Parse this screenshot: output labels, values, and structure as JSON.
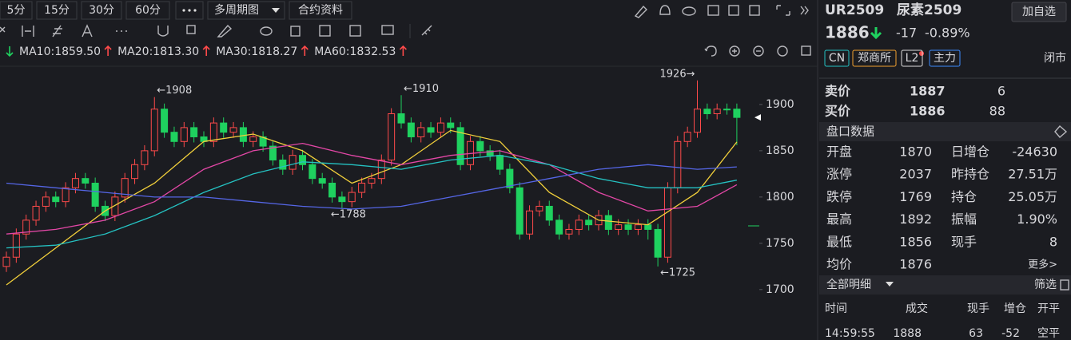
{
  "toolbar": {
    "periods": [
      "5分",
      "15分",
      "30分",
      "60分"
    ],
    "multi_period": "多周期图",
    "contract_info": "合约资料"
  },
  "chart_data": {
    "type": "candlestick",
    "open": [
      1725,
      1735,
      1760,
      1775,
      1790,
      1800,
      1795,
      1810,
      1820,
      1815,
      1790,
      1780,
      1800,
      1820,
      1835,
      1850,
      1895,
      1870,
      1860,
      1875,
      1865,
      1860,
      1880,
      1870,
      1875,
      1860,
      1865,
      1855,
      1840,
      1830,
      1845,
      1835,
      1820,
      1815,
      1800,
      1795,
      1805,
      1815,
      1820,
      1840,
      1890,
      1880,
      1865,
      1875,
      1870,
      1880,
      1875,
      1835,
      1860,
      1850,
      1845,
      1830,
      1810,
      1760,
      1785,
      1790,
      1775,
      1760,
      1765,
      1775,
      1770,
      1780,
      1765,
      1770,
      1765,
      1770,
      1765,
      1735,
      1810,
      1860,
      1870,
      1895,
      1890,
      1895,
      1895
    ],
    "high": [
      1741,
      1766,
      1781,
      1796,
      1806,
      1806,
      1816,
      1826,
      1826,
      1821,
      1796,
      1806,
      1826,
      1841,
      1856,
      1908,
      1901,
      1876,
      1881,
      1881,
      1871,
      1886,
      1886,
      1881,
      1881,
      1871,
      1871,
      1861,
      1846,
      1851,
      1851,
      1841,
      1826,
      1821,
      1806,
      1811,
      1821,
      1826,
      1846,
      1896,
      1910,
      1886,
      1881,
      1881,
      1886,
      1886,
      1881,
      1866,
      1866,
      1856,
      1851,
      1836,
      1816,
      1791,
      1796,
      1796,
      1781,
      1771,
      1781,
      1781,
      1786,
      1786,
      1776,
      1776,
      1776,
      1776,
      1771,
      1816,
      1866,
      1876,
      1926,
      1901,
      1901,
      1901,
      1901
    ],
    "low": [
      1719,
      1729,
      1754,
      1769,
      1784,
      1789,
      1789,
      1804,
      1809,
      1784,
      1774,
      1774,
      1794,
      1814,
      1829,
      1844,
      1864,
      1854,
      1854,
      1859,
      1854,
      1854,
      1864,
      1864,
      1854,
      1854,
      1849,
      1834,
      1824,
      1824,
      1829,
      1814,
      1809,
      1794,
      1788,
      1789,
      1799,
      1809,
      1814,
      1834,
      1874,
      1859,
      1859,
      1864,
      1864,
      1869,
      1829,
      1829,
      1844,
      1839,
      1824,
      1804,
      1754,
      1754,
      1779,
      1769,
      1754,
      1754,
      1759,
      1764,
      1764,
      1759,
      1759,
      1759,
      1759,
      1754,
      1725,
      1729,
      1804,
      1854,
      1864,
      1884,
      1884,
      1889,
      1856
    ],
    "close": [
      1735,
      1760,
      1775,
      1790,
      1800,
      1795,
      1810,
      1820,
      1815,
      1790,
      1780,
      1800,
      1820,
      1835,
      1850,
      1895,
      1870,
      1860,
      1875,
      1865,
      1860,
      1880,
      1870,
      1875,
      1860,
      1865,
      1855,
      1840,
      1830,
      1845,
      1835,
      1820,
      1815,
      1800,
      1795,
      1805,
      1815,
      1820,
      1840,
      1890,
      1880,
      1865,
      1875,
      1870,
      1880,
      1875,
      1835,
      1860,
      1850,
      1845,
      1830,
      1810,
      1760,
      1785,
      1790,
      1775,
      1760,
      1765,
      1775,
      1770,
      1780,
      1765,
      1770,
      1765,
      1770,
      1765,
      1735,
      1810,
      1860,
      1870,
      1895,
      1890,
      1895,
      1895,
      1886
    ],
    "up_color": "#ff4a4a",
    "down_color": "#1fd15f",
    "ylim": [
      1655,
      1937
    ],
    "yticks": [
      1700,
      1750,
      1800,
      1850,
      1900
    ],
    "line_x": [
      0,
      5,
      10,
      15,
      20,
      25,
      30,
      35,
      40,
      45,
      50,
      55,
      60,
      65,
      70,
      74
    ],
    "lines": [
      {
        "name": "MA10",
        "label": "MA10:1859.50",
        "color": "#f2d03b",
        "values": [
          1705,
          1745,
          1785,
          1815,
          1860,
          1868,
          1850,
          1815,
          1835,
          1872,
          1860,
          1805,
          1775,
          1770,
          1805,
          1859.5
        ]
      },
      {
        "name": "MA20",
        "label": "MA20:1813.30",
        "color": "#e347a6",
        "values": [
          1760,
          1765,
          1775,
          1795,
          1830,
          1850,
          1858,
          1845,
          1835,
          1845,
          1850,
          1835,
          1805,
          1785,
          1790,
          1813.3
        ]
      },
      {
        "name": "MA30",
        "label": "MA30:1818.27",
        "color": "#25c2c2",
        "values": [
          1745,
          1748,
          1760,
          1780,
          1805,
          1825,
          1838,
          1835,
          1830,
          1840,
          1845,
          1835,
          1820,
          1810,
          1810,
          1818.27
        ]
      },
      {
        "name": "MA60",
        "label": "MA60:1832.53",
        "color": "#5566e6",
        "values": [
          1815,
          1810,
          1805,
          1800,
          1800,
          1795,
          1790,
          1787,
          1790,
          1800,
          1810,
          1820,
          1830,
          1835,
          1830,
          1832.53
        ]
      }
    ],
    "annotations": [
      {
        "label": "←1908"
      },
      {
        "label": "←1910"
      },
      {
        "label": "←1788"
      },
      {
        "label": "←1725"
      },
      {
        "label": "1926→"
      }
    ]
  },
  "quote": {
    "code": "UR2509",
    "name": "尿素2509",
    "add_button": "加自选",
    "price": 1886,
    "change": "-17",
    "change_pct": "-0.89%",
    "tags": [
      "CN",
      "郑商所",
      "L2",
      "主力"
    ],
    "status": "闭市",
    "ask": {
      "label": "卖价",
      "price": "1887",
      "volume": "6"
    },
    "bid": {
      "label": "买价",
      "price": "1886",
      "volume": "88"
    },
    "section_title": "盘口数据",
    "stats": [
      [
        "开盘",
        "1870",
        "日增仓",
        "-24630"
      ],
      [
        "涨停",
        "2037",
        "昨持仓",
        "27.51万"
      ],
      [
        "跌停",
        "1769",
        "持仓",
        "25.05万"
      ],
      [
        "最高",
        "1892",
        "振幅",
        "1.90%"
      ],
      [
        "最低",
        "1856",
        "现手",
        "8"
      ],
      [
        "均价",
        "1876",
        "更多>"
      ]
    ],
    "detail_title": "全部明细",
    "filter": "筛选",
    "trade_header": [
      "时间",
      "成交",
      "现手",
      "增仓",
      "开平"
    ],
    "trades": [
      [
        "14:59:55",
        "1888",
        "63",
        "-52",
        "空平"
      ]
    ]
  }
}
